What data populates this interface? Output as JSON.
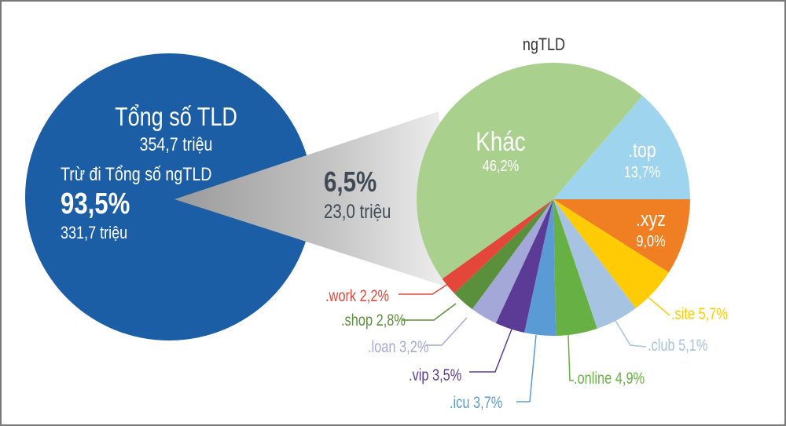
{
  "chart_data": [
    {
      "type": "pie",
      "title": "Tổng số TLD",
      "total_label": "354,7 triệu",
      "slices": [
        {
          "label": "Trừ đi Tổng số ngTLD",
          "percent_label": "93,5%",
          "value_label": "331,7 triệu",
          "value": 93.5,
          "color": "#1b5ea5"
        },
        {
          "label": "",
          "percent_label": "6,5%",
          "value_label": "23,0 triệu",
          "value": 6.5,
          "color": "#b9b9b9"
        }
      ]
    },
    {
      "type": "pie",
      "title": "ngTLD",
      "slices": [
        {
          "label": ".top",
          "percent_label": "13,7%",
          "value": 13.7,
          "color": "#9fd4ef"
        },
        {
          "label": ".xyz",
          "percent_label": "9,0%",
          "value": 9.0,
          "color": "#ef7f22"
        },
        {
          "label": ".site",
          "percent_label": "5,7%",
          "value": 5.7,
          "color": "#ffcb05"
        },
        {
          "label": ".club",
          "percent_label": "5,1%",
          "value": 5.1,
          "color": "#a6c3e2"
        },
        {
          "label": ".online",
          "percent_label": "4,9%",
          "value": 4.9,
          "color": "#67b043"
        },
        {
          "label": ".icu",
          "percent_label": "3,7%",
          "value": 3.7,
          "color": "#5b9bd5"
        },
        {
          "label": ".vip",
          "percent_label": "3,5%",
          "value": 3.5,
          "color": "#5c3b96"
        },
        {
          "label": ".loan",
          "percent_label": "3,2%",
          "value": 3.2,
          "color": "#a3a8d8"
        },
        {
          "label": ".shop",
          "percent_label": "2,8%",
          "value": 2.8,
          "color": "#5a8f3b"
        },
        {
          "label": ".work",
          "percent_label": "2,2%",
          "value": 2.2,
          "color": "#e4463a"
        },
        {
          "label": "Khác",
          "percent_label": "46,2%",
          "value": 46.2,
          "color": "#aad08d"
        }
      ]
    }
  ]
}
